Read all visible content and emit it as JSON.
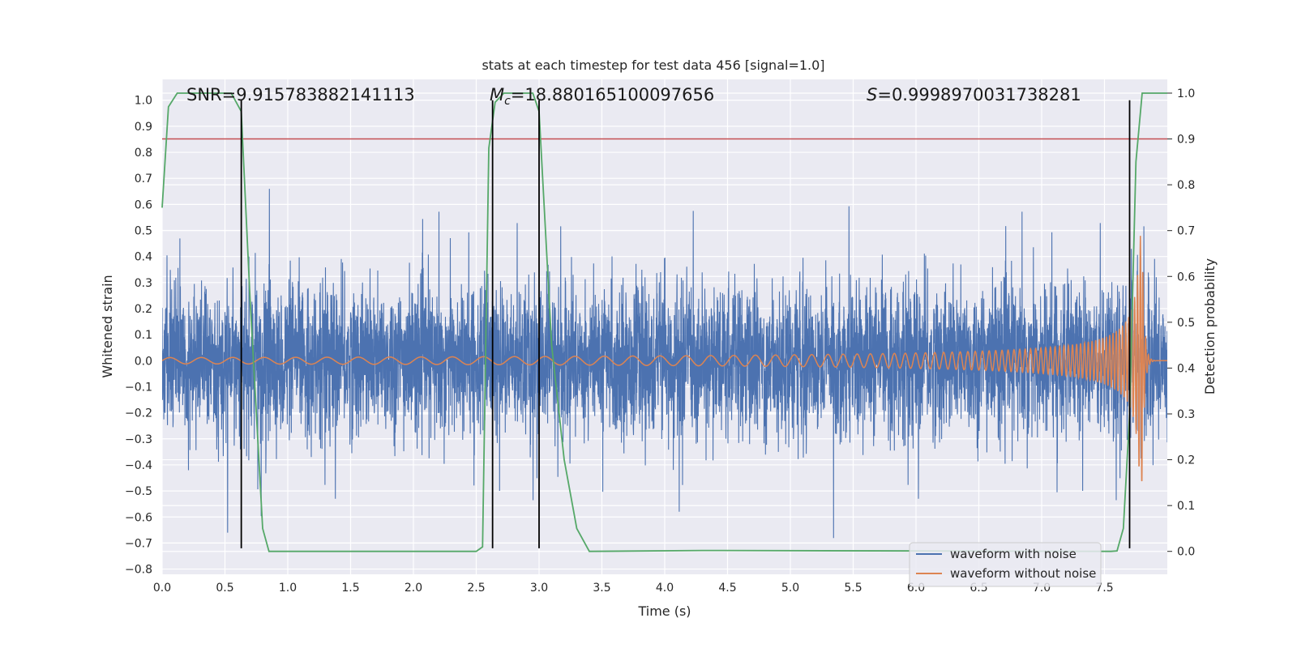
{
  "chart_data": {
    "type": "line",
    "title": "stats at each timestep for test data 456 [signal=1.0]",
    "xlabel": "Time (s)",
    "ylabel": "Whitened strain",
    "ylabel_right": "Detection probability",
    "xlim": [
      0.0,
      8.0
    ],
    "ylim": [
      -0.82,
      1.08
    ],
    "ylim_right": [
      -0.05,
      1.03
    ],
    "x_ticks": [
      "0.0",
      "0.5",
      "1.0",
      "1.5",
      "2.0",
      "2.5",
      "3.0",
      "3.5",
      "4.0",
      "4.5",
      "5.0",
      "5.5",
      "6.0",
      "6.5",
      "7.0",
      "7.5"
    ],
    "y_ticks": [
      "−0.8",
      "−0.7",
      "−0.6",
      "−0.5",
      "−0.4",
      "−0.3",
      "−0.2",
      "−0.1",
      "0.0",
      "0.1",
      "0.2",
      "0.3",
      "0.4",
      "0.5",
      "0.6",
      "0.7",
      "0.8",
      "0.9",
      "1.0"
    ],
    "y_right_ticks": [
      "0.0",
      "0.1",
      "0.2",
      "0.3",
      "0.4",
      "0.5",
      "0.6",
      "0.7",
      "0.8",
      "0.9",
      "1.0"
    ],
    "annotations": {
      "snr": "SNR=9.915783882141113",
      "mc_symbol": "M",
      "mc_sub": "c",
      "mc_value": "=18.880165100097656",
      "s_symbol": "S",
      "s_value": "=0.9998970031738281"
    },
    "threshold_right": 0.9,
    "vertical_lines_x": [
      0.63,
      2.63,
      3.0,
      7.7
    ],
    "vertical_lines_ylim": [
      -0.72,
      1.0
    ],
    "series": [
      {
        "name": "waveform with noise",
        "color": "#4c72b0",
        "axis": "left",
        "noise_sigma": 0.14,
        "peak_max": 0.66,
        "peak_min": -0.72,
        "duration": 8.0
      },
      {
        "name": "waveform without noise",
        "color": "#dd8452",
        "axis": "left",
        "chirp_amp_start": 0.012,
        "chirp_amp_peak": 0.48,
        "chirp_f_start": 4.0,
        "chirp_f_end": 45.0,
        "merger_time": 7.8
      },
      {
        "name": "detection probability",
        "color": "#55a868",
        "axis": "right",
        "x": [
          0.0,
          0.05,
          0.12,
          0.3,
          0.55,
          0.63,
          0.7,
          0.75,
          0.8,
          0.85,
          0.9,
          2.4,
          2.5,
          2.55,
          2.6,
          2.65,
          2.72,
          2.95,
          3.0,
          3.1,
          3.2,
          3.3,
          3.4,
          4.3,
          7.55,
          7.6,
          7.65,
          7.7,
          7.75,
          7.8,
          7.9,
          8.0
        ],
        "y": [
          0.75,
          0.97,
          1.0,
          1.0,
          1.0,
          0.96,
          0.55,
          0.3,
          0.05,
          0.0,
          0.0,
          0.0,
          0.0,
          0.01,
          0.88,
          0.98,
          1.0,
          1.0,
          0.96,
          0.45,
          0.2,
          0.05,
          0.0,
          0.002,
          0.0,
          0.001,
          0.05,
          0.3,
          0.85,
          1.0,
          1.0,
          1.0
        ]
      }
    ],
    "legend": {
      "position": "lower-right",
      "entries": [
        "waveform with noise",
        "waveform without noise"
      ]
    }
  }
}
